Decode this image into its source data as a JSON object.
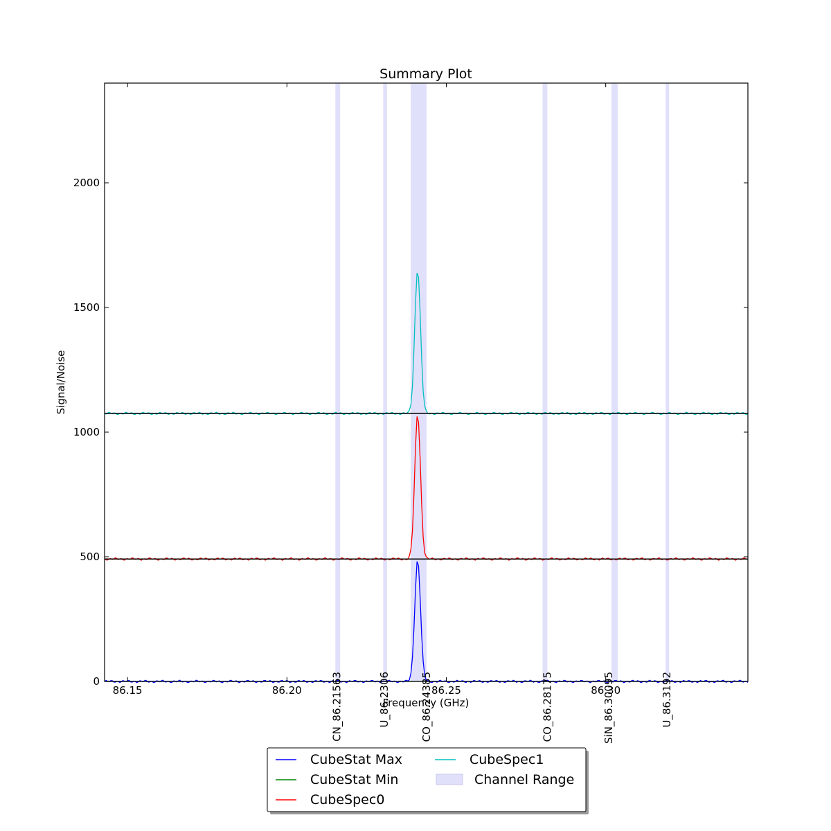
{
  "chart_data": {
    "type": "line",
    "title": "Summary Plot",
    "xlabel": "Frequency (GHz)",
    "ylabel": "Signal/Noise",
    "xlim": [
      86.1428,
      86.3446
    ],
    "ylim": [
      0,
      2400
    ],
    "x_ticks": [
      86.15,
      86.2,
      86.25,
      86.3
    ],
    "x_tick_labels": [
      "86.15",
      "86.20",
      "86.25",
      "86.30"
    ],
    "y_ticks": [
      0,
      500,
      1000,
      1500,
      2000
    ],
    "y_tick_labels": [
      "0",
      "500",
      "1000",
      "1500",
      "2000"
    ],
    "grid": false,
    "legend_position": "bottom-center",
    "channel_ranges": [
      [
        86.2152,
        86.2167
      ],
      [
        86.2302,
        86.2314
      ],
      [
        86.2388,
        86.2438
      ],
      [
        86.2802,
        86.2817
      ],
      [
        86.3018,
        86.3038
      ],
      [
        86.3188,
        86.3199
      ]
    ],
    "line_ids": [
      {
        "x": 86.21563,
        "label": "CN_86.21563"
      },
      {
        "x": 86.2306,
        "label": "U_86.2306"
      },
      {
        "x": 86.24385,
        "label": "CO_86.24385"
      },
      {
        "x": 86.28175,
        "label": "CO_86.28175"
      },
      {
        "x": 86.30095,
        "label": "SiN_86.30095"
      },
      {
        "x": 86.3192,
        "label": "U_86.3192"
      }
    ],
    "series": [
      {
        "name": "CubeStat Max",
        "color": "#0000ff",
        "baseline": 0,
        "peak_x": 86.241,
        "peak_value": 490,
        "peak_width_ghz": 0.0009
      },
      {
        "name": "CubeStat Min",
        "color": "#008000",
        "baseline": 0,
        "peak_x": null,
        "peak_value": 0,
        "peak_width_ghz": 0
      },
      {
        "name": "CubeSpec0",
        "color": "#ff0000",
        "baseline": 491,
        "peak_x": 86.241,
        "peak_value": 1075,
        "peak_width_ghz": 0.0009
      },
      {
        "name": "CubeSpec1",
        "color": "#00bfbf",
        "baseline": 1075,
        "peak_x": 86.241,
        "peak_value": 1655,
        "peak_width_ghz": 0.0009
      }
    ],
    "offset_baselines": [
      491,
      1075
    ],
    "legend": {
      "entries": [
        {
          "label": "CubeStat Max",
          "kind": "line",
          "color": "#0000ff"
        },
        {
          "label": "CubeStat Min",
          "kind": "line",
          "color": "#008000"
        },
        {
          "label": "CubeSpec0",
          "kind": "line",
          "color": "#ff0000"
        },
        {
          "label": "CubeSpec1",
          "kind": "line",
          "color": "#00bfbf"
        },
        {
          "label": "Channel Range",
          "kind": "patch",
          "color": "#e0e0fa"
        }
      ]
    }
  }
}
